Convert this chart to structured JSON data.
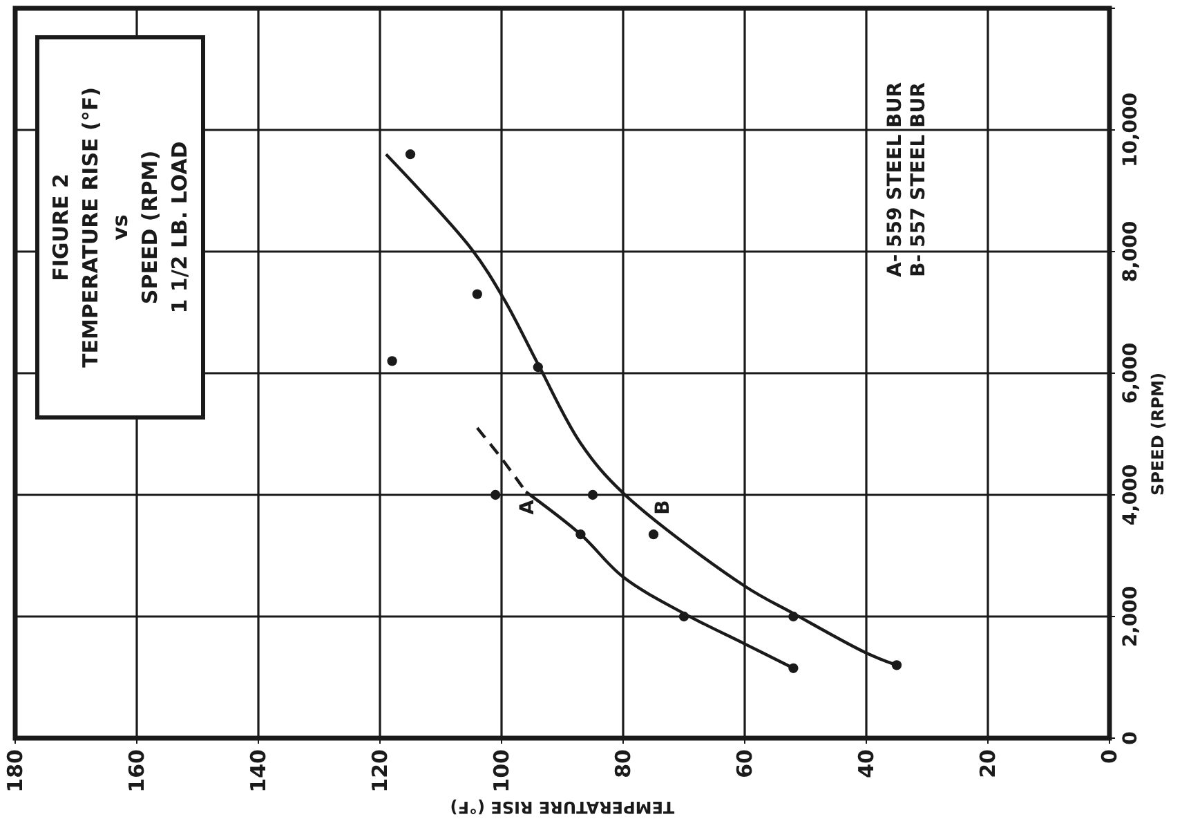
{
  "chart_data": {
    "type": "scatter",
    "title": "FIGURE 2",
    "subtitle": "TEMPERATURE RISE (°F)\nvs\nSPEED (RPM)\n1 1/2 LB. LOAD",
    "xlabel": "TEMPERATURE RISE (°F)",
    "ylabel": "SPEED (RPM)",
    "xlim": [
      180,
      0
    ],
    "xticks": [
      180,
      160,
      140,
      120,
      100,
      80,
      60,
      40,
      20,
      {
        "value": 0,
        "label": "0"
      }
    ],
    "ylim": [
      0,
      12000
    ],
    "yticks": [
      {
        "value": 0,
        "label": "0"
      },
      {
        "value": 2000,
        "label": "2,000"
      },
      {
        "value": 4000,
        "label": "4,000"
      },
      {
        "value": 6000,
        "label": "6,000"
      },
      {
        "value": 8000,
        "label": "8,000"
      },
      {
        "value": 10000,
        "label": "10,000"
      },
      {
        "value": 12000,
        "label": null
      }
    ],
    "grid": true,
    "series": [
      {
        "color": "#1a1a1a",
        "marker": "circle",
        "x": [
          115,
          104,
          118,
          94,
          101,
          85,
          87,
          75,
          70,
          52,
          52,
          35
        ],
        "values": [
          9600,
          7300,
          6200,
          6100,
          4000,
          4000,
          3350,
          3350,
          2000,
          2000,
          1150,
          1200
        ]
      },
      {
        "type": "line",
        "color": "#1a1a1a",
        "marker": "none",
        "line_style": "dashed",
        "x": [
          104,
          100,
          96
        ],
        "values": [
          5100,
          4600,
          4050
        ]
      },
      {
        "type": "line",
        "color": "#1a1a1a",
        "marker": "none",
        "line_style": "solid",
        "x": [
          96,
          87,
          80,
          70,
          60,
          52
        ],
        "values": [
          4050,
          3350,
          2650,
          2050,
          1550,
          1150
        ]
      },
      {
        "type": "line",
        "color": "#1a1a1a",
        "marker": "none",
        "line_style": "solid",
        "x": [
          119,
          105,
          99.5,
          94,
          87,
          80,
          60,
          52,
          40,
          35
        ],
        "values": [
          9600,
          8050,
          7200,
          6150,
          4850,
          4030,
          2500,
          2050,
          1400,
          1200
        ]
      }
    ],
    "annotations": [
      "A",
      "B",
      "A- 559 STEEL BUR",
      "B- 557 STEEL BUR"
    ]
  }
}
